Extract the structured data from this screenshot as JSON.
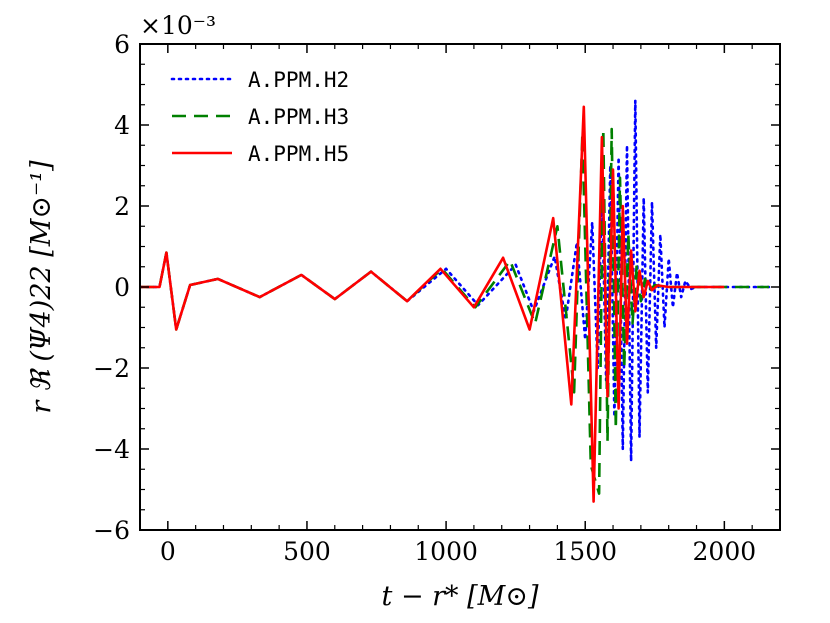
{
  "chart_data": {
    "type": "line",
    "title": "",
    "xlabel": "t − r* [M⊙]",
    "ylabel": "r ℜ (Ψ4)22 [M⊙⁻¹]",
    "scale_label": "×10⁻³",
    "xlim": [
      -100,
      2200
    ],
    "ylim": [
      -6,
      6
    ],
    "x_ticks": [
      0,
      500,
      1000,
      1500,
      2000
    ],
    "y_ticks": [
      -6,
      -4,
      -2,
      0,
      2,
      4,
      6
    ],
    "x_tick_labels": [
      "0",
      "500",
      "1000",
      "1500",
      "2000"
    ],
    "y_tick_labels": [
      "−6",
      "−4",
      "−2",
      "0",
      "2",
      "4",
      "6"
    ],
    "grid": false,
    "legend_position": "top-left",
    "series": [
      {
        "name": "A.PPM.H2",
        "color": "#0000ff",
        "style": "dotted",
        "x": [
          -100,
          -30,
          -5,
          30,
          80,
          180,
          330,
          480,
          600,
          730,
          860,
          1000,
          1115,
          1250,
          1315,
          1390,
          1430,
          1470,
          1500,
          1525,
          1545,
          1560,
          1575,
          1590,
          1605,
          1620,
          1635,
          1650,
          1665,
          1680,
          1695,
          1710,
          1725,
          1740,
          1755,
          1770,
          1785,
          1800,
          1815,
          1830,
          1845,
          1860,
          1880,
          1900,
          2160
        ],
        "y": [
          0,
          0,
          0.85,
          -1.05,
          0.05,
          0.2,
          -0.25,
          0.3,
          -0.3,
          0.38,
          -0.35,
          0.45,
          -0.45,
          0.55,
          -0.6,
          0.75,
          -0.8,
          1.1,
          -1.3,
          1.6,
          -2.0,
          2.5,
          -2.3,
          3.0,
          -3.2,
          3.2,
          -4.0,
          3.5,
          -4.3,
          4.6,
          -3.7,
          2.2,
          -2.6,
          2.1,
          -1.5,
          1.3,
          -1.0,
          0.7,
          -0.5,
          0.35,
          -0.25,
          0.15,
          -0.05,
          0,
          0
        ]
      },
      {
        "name": "A.PPM.H3",
        "color": "#008000",
        "style": "dashed",
        "x": [
          -100,
          -30,
          -5,
          30,
          80,
          180,
          330,
          480,
          600,
          730,
          860,
          985,
          1105,
          1230,
          1320,
          1400,
          1460,
          1490,
          1520,
          1550,
          1565,
          1580,
          1595,
          1610,
          1625,
          1640,
          1655,
          1670,
          1685,
          1700,
          1715,
          1730,
          1750,
          1780,
          2160
        ],
        "y": [
          0,
          0,
          0.85,
          -1.05,
          0.05,
          0.2,
          -0.25,
          0.3,
          -0.3,
          0.38,
          -0.35,
          0.45,
          -0.5,
          0.65,
          -0.9,
          1.5,
          -2.6,
          3.8,
          -4.4,
          -5.1,
          3.9,
          -3.8,
          3.9,
          -3.5,
          2.7,
          -2.0,
          1.3,
          -0.9,
          0.55,
          -0.35,
          0.2,
          -0.1,
          0.05,
          0,
          0
        ]
      },
      {
        "name": "A.PPM.H5",
        "color": "#ff0000",
        "style": "solid",
        "x": [
          -100,
          -30,
          -5,
          30,
          80,
          180,
          330,
          480,
          600,
          730,
          860,
          980,
          1100,
          1205,
          1300,
          1385,
          1450,
          1495,
          1530,
          1560,
          1580,
          1600,
          1620,
          1635,
          1650,
          1665,
          1680,
          1695,
          1710,
          1725,
          1740,
          1760,
          1800,
          2000
        ],
        "y": [
          0,
          0,
          0.85,
          -1.05,
          0.05,
          0.2,
          -0.25,
          0.3,
          -0.3,
          0.38,
          -0.35,
          0.45,
          -0.5,
          0.72,
          -1.05,
          1.7,
          -2.9,
          4.45,
          -5.3,
          3.7,
          -2.7,
          2.9,
          -3.0,
          2.0,
          -1.4,
          0.9,
          -0.6,
          0.4,
          -0.25,
          0.15,
          -0.08,
          0.04,
          0,
          0
        ]
      }
    ]
  }
}
